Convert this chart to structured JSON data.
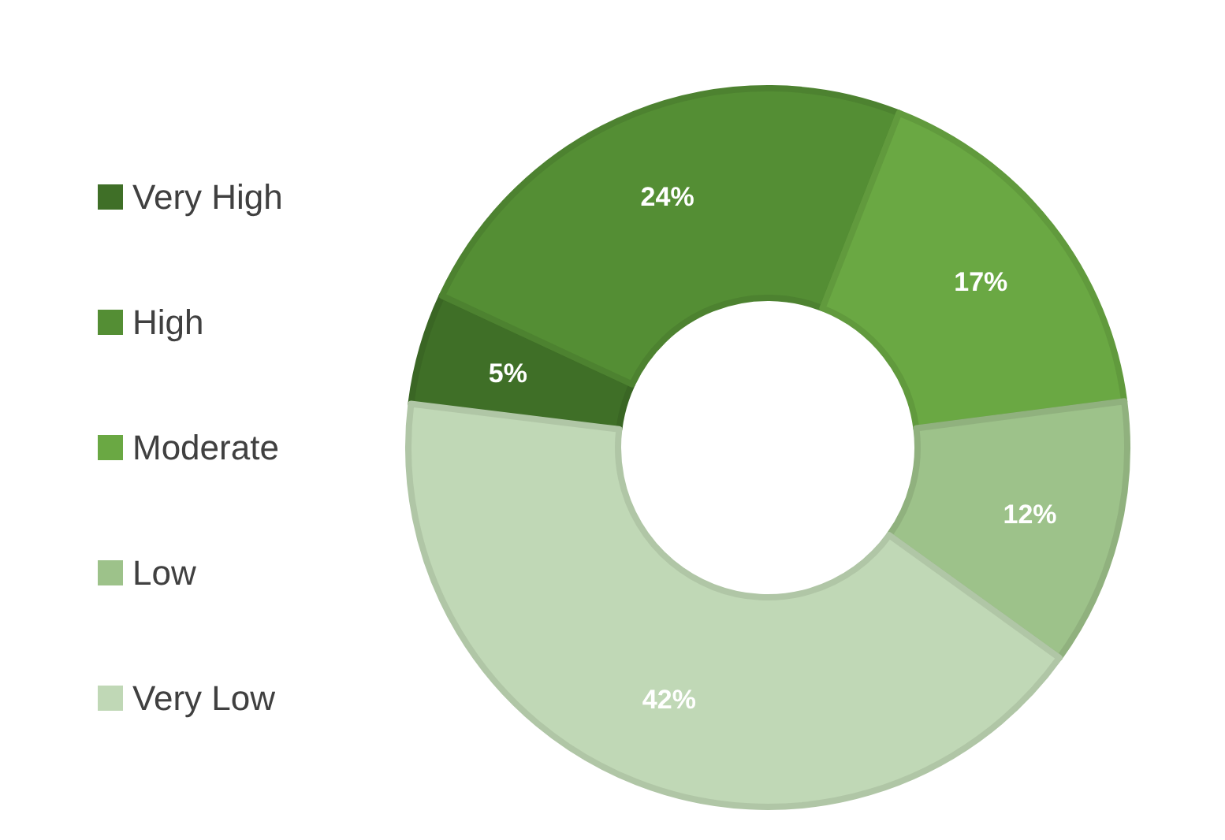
{
  "chart_data": {
    "type": "donut",
    "categories": [
      "Very High",
      "High",
      "Moderate",
      "Low",
      "Very Low"
    ],
    "values": [
      5,
      24,
      17,
      12,
      42
    ],
    "value_labels": [
      "5%",
      "24%",
      "17%",
      "12%",
      "42%"
    ],
    "colors": [
      "#3f6f27",
      "#548e34",
      "#6aa843",
      "#9dc28a",
      "#c0d8b6"
    ],
    "legend": "left"
  }
}
